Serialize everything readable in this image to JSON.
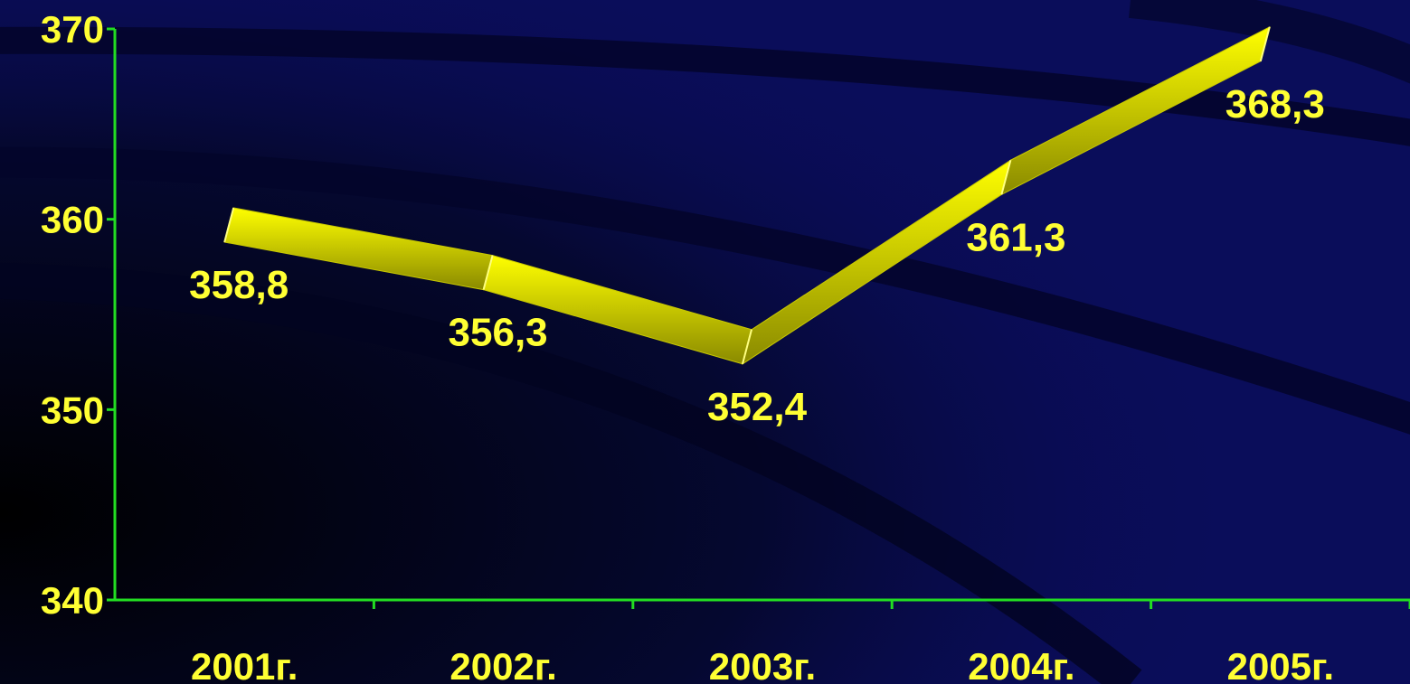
{
  "chart_data": {
    "type": "line",
    "title": "",
    "xlabel": "",
    "ylabel": "",
    "categories": [
      "2001г.",
      "2002г.",
      "2003г.",
      "2004г.",
      "2005г."
    ],
    "series": [
      {
        "values": [
          358.8,
          356.3,
          352.4,
          361.3,
          368.3
        ],
        "labels": [
          "358,8",
          "356,3",
          "352,4",
          "361,3",
          "368,3"
        ]
      }
    ],
    "ylim": [
      340,
      370
    ],
    "yticks": [
      340,
      350,
      360,
      370
    ],
    "ytick_labels": [
      "340",
      "350",
      "360",
      "370"
    ],
    "grid": false,
    "legend": "none",
    "style": "3d-ribbon",
    "colors": {
      "background": "#0a0d5a",
      "axis": "#22dd22",
      "ribbon": "#ffff00",
      "text": "#ffff33"
    }
  }
}
